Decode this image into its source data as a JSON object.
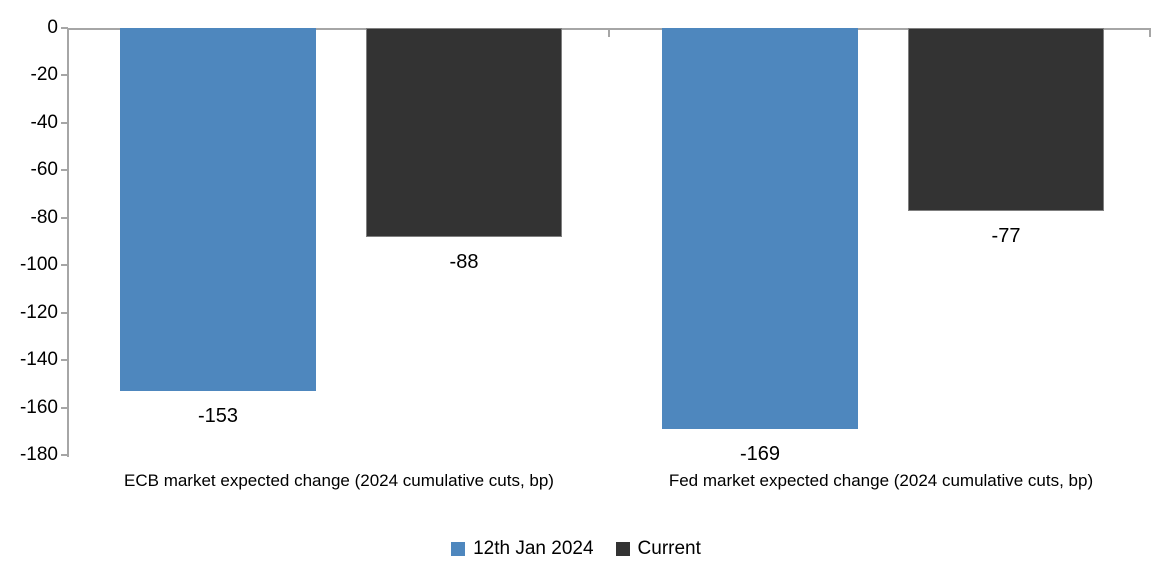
{
  "chart_data": {
    "type": "bar",
    "title": "",
    "categories": [
      "ECB market expected change (2024 cumulative cuts, bp)",
      "Fed market expected change (2024 cumulative cuts, bp)"
    ],
    "series": [
      {
        "name": "12th Jan 2024",
        "color": "#4E87BE",
        "values": [
          -153,
          -169
        ]
      },
      {
        "name": "Current",
        "color": "#333333",
        "values": [
          -88,
          -77
        ]
      }
    ],
    "data_labels": [
      [
        "-153",
        "-169"
      ],
      [
        "-88",
        "-77"
      ]
    ],
    "yticks": [
      "0",
      "-20",
      "-40",
      "-60",
      "-80",
      "-100",
      "-120",
      "-140",
      "-160",
      "-180"
    ],
    "ylim": [
      -180,
      0
    ],
    "xlabel": "",
    "ylabel": "",
    "grid": false,
    "legend_position": "bottom",
    "axis_color": "#A6A6A6",
    "background_color": "#FFFFFF",
    "bar_orientation": "vertical-negative"
  }
}
